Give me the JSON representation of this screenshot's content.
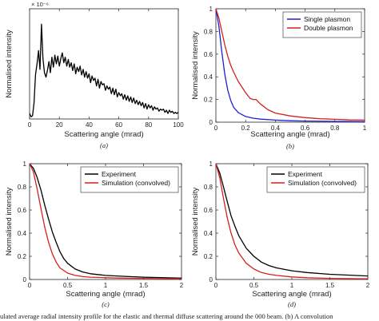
{
  "chart_data": [
    {
      "type": "line",
      "panel_label": "(a)",
      "xlabel": "Scattering angle (mrad)",
      "ylabel": "Normalised intensity",
      "y_multiplier_label": "× 10⁻⁶",
      "xlim": [
        0,
        100
      ],
      "ylim": [
        0,
        1.0
      ],
      "xticks": [
        0,
        20,
        40,
        60,
        80,
        100
      ],
      "yticks": [],
      "series": [
        {
          "color": "#000000",
          "x": [
            0,
            1,
            2,
            3,
            4,
            5,
            6,
            7,
            8,
            9,
            10,
            11,
            12,
            13,
            14,
            15,
            16,
            17,
            18,
            19,
            20,
            21,
            22,
            23,
            24,
            25,
            26,
            27,
            28,
            29,
            30,
            31,
            32,
            33,
            34,
            35,
            36,
            37,
            38,
            39,
            40,
            41,
            42,
            43,
            44,
            45,
            46,
            47,
            48,
            49,
            50,
            51,
            52,
            53,
            54,
            55,
            56,
            57,
            58,
            59,
            60,
            61,
            62,
            63,
            64,
            65,
            66,
            67,
            68,
            69,
            70,
            71,
            72,
            73,
            74,
            75,
            76,
            77,
            78,
            79,
            80,
            81,
            82,
            83,
            84,
            85,
            86,
            87,
            88,
            89,
            90,
            91,
            92,
            93,
            94,
            95,
            96,
            97,
            98,
            99,
            100
          ],
          "values": [
            0.05,
            0.02,
            0.03,
            0.15,
            0.4,
            0.5,
            0.62,
            0.45,
            0.86,
            0.55,
            0.42,
            0.38,
            0.44,
            0.52,
            0.42,
            0.56,
            0.47,
            0.58,
            0.5,
            0.57,
            0.48,
            0.55,
            0.6,
            0.51,
            0.56,
            0.48,
            0.54,
            0.47,
            0.51,
            0.44,
            0.5,
            0.41,
            0.47,
            0.43,
            0.48,
            0.4,
            0.45,
            0.38,
            0.43,
            0.37,
            0.41,
            0.33,
            0.39,
            0.35,
            0.37,
            0.3,
            0.36,
            0.28,
            0.34,
            0.31,
            0.32,
            0.26,
            0.3,
            0.27,
            0.29,
            0.23,
            0.28,
            0.22,
            0.27,
            0.2,
            0.24,
            0.21,
            0.23,
            0.18,
            0.22,
            0.17,
            0.21,
            0.16,
            0.2,
            0.15,
            0.19,
            0.14,
            0.17,
            0.13,
            0.16,
            0.12,
            0.15,
            0.1,
            0.14,
            0.09,
            0.13,
            0.1,
            0.12,
            0.08,
            0.11,
            0.09,
            0.1,
            0.07,
            0.09,
            0.08,
            0.09,
            0.06,
            0.08,
            0.05,
            0.08,
            0.06,
            0.07,
            0.05,
            0.06,
            0.05,
            0.06
          ]
        }
      ]
    },
    {
      "type": "line",
      "panel_label": "(b)",
      "xlabel": "Scattering angle (mrad)",
      "ylabel": "Normalised intensity",
      "xlim": [
        0,
        1
      ],
      "ylim": [
        0,
        1
      ],
      "xticks": [
        0,
        0.2,
        0.4,
        0.6,
        0.8,
        1
      ],
      "yticks": [
        0,
        0.2,
        0.4,
        0.6,
        0.8,
        1
      ],
      "legend_position": "top-right",
      "series": [
        {
          "name": "Single plasmon",
          "color": "#1f1fd6",
          "x": [
            0,
            0.02,
            0.04,
            0.06,
            0.08,
            0.1,
            0.12,
            0.15,
            0.2,
            0.25,
            0.3,
            0.4,
            0.5,
            0.6,
            0.8,
            1.0
          ],
          "values": [
            1.0,
            0.85,
            0.62,
            0.42,
            0.28,
            0.19,
            0.13,
            0.085,
            0.05,
            0.035,
            0.027,
            0.018,
            0.013,
            0.01,
            0.007,
            0.005
          ]
        },
        {
          "name": "Double plasmon",
          "color": "#d42020",
          "x": [
            0,
            0.02,
            0.04,
            0.06,
            0.08,
            0.1,
            0.12,
            0.15,
            0.2,
            0.23,
            0.25,
            0.27,
            0.3,
            0.35,
            0.4,
            0.5,
            0.6,
            0.7,
            0.8,
            0.9,
            1.0
          ],
          "values": [
            1.0,
            0.92,
            0.8,
            0.68,
            0.58,
            0.5,
            0.44,
            0.36,
            0.26,
            0.21,
            0.2,
            0.2,
            0.16,
            0.11,
            0.08,
            0.055,
            0.04,
            0.03,
            0.025,
            0.02,
            0.018
          ]
        }
      ]
    },
    {
      "type": "line",
      "panel_label": "(c)",
      "xlabel": "Scattering angle (mrad)",
      "ylabel": "Normalised intensity",
      "xlim": [
        0,
        2
      ],
      "ylim": [
        0,
        1
      ],
      "xticks": [
        0,
        0.5,
        1,
        1.5,
        2
      ],
      "yticks": [
        0,
        0.2,
        0.4,
        0.6,
        0.8,
        1
      ],
      "legend_position": "top-right",
      "series": [
        {
          "name": "Experiment",
          "color": "#000000",
          "x": [
            0,
            0.05,
            0.1,
            0.15,
            0.2,
            0.25,
            0.3,
            0.35,
            0.4,
            0.45,
            0.5,
            0.6,
            0.7,
            0.8,
            1.0,
            1.2,
            1.5,
            2.0
          ],
          "values": [
            1.0,
            0.96,
            0.88,
            0.77,
            0.64,
            0.52,
            0.41,
            0.32,
            0.24,
            0.18,
            0.14,
            0.09,
            0.065,
            0.05,
            0.035,
            0.028,
            0.02,
            0.012
          ]
        },
        {
          "name": "Simulation (convolved)",
          "color": "#d42020",
          "x": [
            0,
            0.05,
            0.1,
            0.15,
            0.2,
            0.25,
            0.3,
            0.35,
            0.4,
            0.5,
            0.6,
            0.7,
            0.8,
            1.0,
            1.2,
            1.5,
            2.0
          ],
          "values": [
            1.0,
            0.93,
            0.78,
            0.61,
            0.45,
            0.32,
            0.22,
            0.15,
            0.1,
            0.055,
            0.035,
            0.025,
            0.02,
            0.015,
            0.012,
            0.01,
            0.007
          ]
        }
      ]
    },
    {
      "type": "line",
      "panel_label": "(d)",
      "xlabel": "Scattering angle (mrad)",
      "ylabel": "Normalised intensity",
      "xlim": [
        0,
        2
      ],
      "ylim": [
        0,
        1
      ],
      "xticks": [
        0,
        0.5,
        1,
        1.5,
        2
      ],
      "yticks": [
        0,
        0.2,
        0.4,
        0.6,
        0.8,
        1
      ],
      "legend_position": "top-right",
      "series": [
        {
          "name": "Experiment",
          "color": "#000000",
          "x": [
            0,
            0.05,
            0.1,
            0.15,
            0.2,
            0.25,
            0.3,
            0.4,
            0.5,
            0.6,
            0.7,
            0.8,
            1.0,
            1.2,
            1.5,
            2.0
          ],
          "values": [
            1.0,
            0.92,
            0.8,
            0.67,
            0.55,
            0.46,
            0.38,
            0.27,
            0.2,
            0.15,
            0.12,
            0.1,
            0.075,
            0.06,
            0.045,
            0.03
          ]
        },
        {
          "name": "Simulation (convolved)",
          "color": "#d42020",
          "x": [
            0,
            0.05,
            0.1,
            0.15,
            0.2,
            0.25,
            0.3,
            0.4,
            0.5,
            0.6,
            0.7,
            0.8,
            1.0,
            1.2,
            1.5,
            2.0
          ],
          "values": [
            1.0,
            0.88,
            0.7,
            0.53,
            0.4,
            0.3,
            0.23,
            0.14,
            0.09,
            0.06,
            0.045,
            0.035,
            0.022,
            0.015,
            0.01,
            0.006
          ]
        }
      ]
    }
  ],
  "caption": "ulated average radial intensity profile for the elastic and thermal diffuse scattering around the 000 beam. (b) A convolution"
}
